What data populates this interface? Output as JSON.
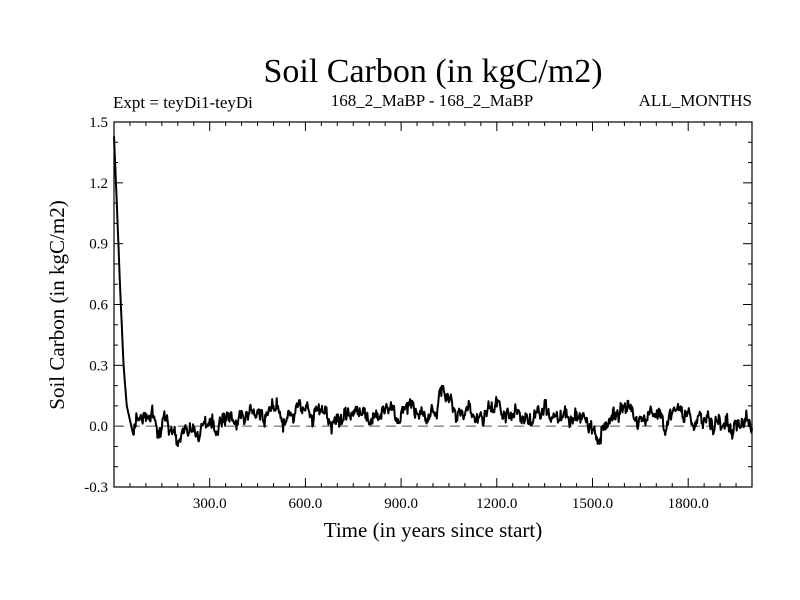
{
  "chart_data": {
    "type": "line",
    "title": "Soil Carbon (in kgC/m2)",
    "subtitle_left": "Expt = teyDi1-teyDi",
    "subtitle_center": "168_2_MaBP - 168_2_MaBP",
    "subtitle_right": "ALL_MONTHS",
    "xlabel": "Time (in years since start)",
    "ylabel": "Soil Carbon (in kgC/m2)",
    "xlim": [
      0,
      2000
    ],
    "ylim": [
      -0.3,
      1.5
    ],
    "x_ticks": [
      300,
      600,
      900,
      1200,
      1500,
      1800
    ],
    "x_tick_labels": [
      "300.0",
      "600.0",
      "900.0",
      "1200.0",
      "1500.0",
      "1800.0"
    ],
    "y_ticks": [
      -0.3,
      0.0,
      0.3,
      0.6,
      0.9,
      1.2,
      1.5
    ],
    "y_tick_labels": [
      "-0.3",
      "0.0",
      "0.3",
      "0.6",
      "0.9",
      "1.2",
      "1.5"
    ],
    "reference_line": 0.0,
    "series": [
      {
        "name": "Soil Carbon",
        "color": "#000000",
        "x": [
          0,
          10,
          20,
          30,
          40,
          50,
          60,
          70,
          80,
          100,
          120,
          140,
          160,
          180,
          200,
          230,
          260,
          290,
          320,
          350,
          380,
          410,
          440,
          470,
          500,
          530,
          560,
          590,
          620,
          650,
          680,
          710,
          740,
          770,
          800,
          830,
          860,
          890,
          920,
          950,
          980,
          1010,
          1030,
          1050,
          1080,
          1110,
          1140,
          1170,
          1200,
          1230,
          1260,
          1290,
          1320,
          1350,
          1380,
          1410,
          1440,
          1470,
          1500,
          1520,
          1550,
          1580,
          1610,
          1640,
          1670,
          1700,
          1730,
          1760,
          1790,
          1820,
          1850,
          1880,
          1910,
          1940,
          1970,
          2000
        ],
        "y": [
          1.43,
          1.05,
          0.65,
          0.3,
          0.1,
          0.03,
          -0.04,
          0.02,
          0.05,
          0.03,
          0.06,
          -0.04,
          0.05,
          -0.02,
          -0.08,
          0.0,
          -0.05,
          0.03,
          -0.02,
          0.05,
          0.02,
          0.05,
          0.08,
          0.03,
          0.12,
          0.02,
          0.07,
          0.1,
          0.04,
          0.09,
          0.01,
          0.04,
          0.06,
          0.08,
          0.02,
          0.06,
          0.1,
          0.03,
          0.12,
          0.07,
          0.03,
          0.08,
          0.19,
          0.13,
          0.05,
          0.1,
          0.02,
          0.07,
          0.11,
          0.04,
          0.08,
          0.02,
          0.05,
          0.09,
          0.03,
          0.06,
          0.03,
          0.06,
          -0.02,
          -0.08,
          0.03,
          0.06,
          0.12,
          0.02,
          0.05,
          0.08,
          -0.01,
          0.1,
          0.06,
          0.02,
          0.04,
          0.01,
          0.02,
          -0.02,
          0.03,
          0.01
        ]
      }
    ]
  }
}
